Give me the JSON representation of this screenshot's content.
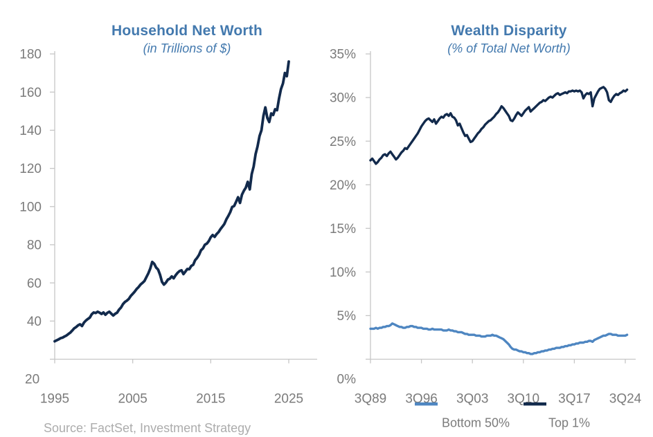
{
  "source_note": "Source: FactSet, Investment Strategy",
  "colors": {
    "title_blue": "#4379AE",
    "navy": "#122A4C",
    "light_blue": "#4E86C1",
    "label_gray": "#7B7B7B",
    "source_gray": "#ACACAC",
    "axis_gray": "#C6C6C6"
  },
  "chart_data": [
    {
      "type": "line",
      "title": "Household Net Worth",
      "subtitle": "(in Trillions of $)",
      "xlabel": "",
      "ylabel": "",
      "grid": false,
      "legend_position": "none",
      "xlim": [
        1995,
        2025
      ],
      "ylim": [
        20,
        180
      ],
      "x_start": 1995.0,
      "x_step": 0.25,
      "x_unit": "year-quarterly",
      "y_ticks": [
        20,
        40,
        60,
        80,
        100,
        120,
        140,
        160,
        180
      ],
      "y_suffix": "",
      "x_ticks": {
        "values": [
          1995,
          2005,
          2015,
          2025
        ],
        "labels": [
          "1995",
          "2005",
          "2015",
          "2025"
        ]
      },
      "series": [
        {
          "name": "Household Net Worth",
          "color_key": "navy",
          "values": [
            29.4,
            29.9,
            30.4,
            31.0,
            31.3,
            31.9,
            32.4,
            33.2,
            33.9,
            35.0,
            36.2,
            36.9,
            37.8,
            38.3,
            37.4,
            39.2,
            40.3,
            41.1,
            41.8,
            43.6,
            44.5,
            44.2,
            44.9,
            44.4,
            43.7,
            44.5,
            43.3,
            44.3,
            44.9,
            43.9,
            42.9,
            43.8,
            44.4,
            46.0,
            47.1,
            48.9,
            50.0,
            50.7,
            51.6,
            53.2,
            54.3,
            55.4,
            56.8,
            57.8,
            59.1,
            60.0,
            61.0,
            63.0,
            65.0,
            67.5,
            71.0,
            70.0,
            68.0,
            67.0,
            64.3,
            60.6,
            59.1,
            60.1,
            61.7,
            62.2,
            63.4,
            62.4,
            64.0,
            65.3,
            66.2,
            66.6,
            64.6,
            65.9,
            67.3,
            67.2,
            68.9,
            69.5,
            71.9,
            73.1,
            74.7,
            77.1,
            78.1,
            80.0,
            80.6,
            81.9,
            83.9,
            85.1,
            84.1,
            85.6,
            86.6,
            88.2,
            89.5,
            90.9,
            93.3,
            95.1,
            97.1,
            99.8,
            100.3,
            102.5,
            104.9,
            101.9,
            106.2,
            108.3,
            109.9,
            113.0,
            109.0,
            117.0,
            121.0,
            127.5,
            131.5,
            137.0,
            140.0,
            147.5,
            152.0,
            146.5,
            144.3,
            148.8,
            148.0,
            151.0,
            150.5,
            156.5,
            161.5,
            164.5,
            170.0,
            168.3,
            176.0
          ]
        }
      ]
    },
    {
      "type": "line",
      "title": "Wealth Disparity",
      "subtitle": "(% of Total Net Worth)",
      "xlabel": "",
      "ylabel": "",
      "grid": false,
      "legend_position": "bottom",
      "xlim": [
        1989.5,
        2024.5
      ],
      "ylim": [
        0,
        35
      ],
      "x_start": 1989.5,
      "x_step": 0.25,
      "x_unit": "year-quarterly",
      "y_ticks": [
        0,
        5,
        10,
        15,
        20,
        25,
        30,
        35
      ],
      "y_suffix": "%",
      "x_ticks": {
        "values": [
          1989.5,
          1996.5,
          2003.5,
          2010.5,
          2017.5,
          2024.5
        ],
        "labels": [
          "3Q89",
          "3Q96",
          "3Q03",
          "3Q10",
          "3Q17",
          "3Q24"
        ]
      },
      "series": [
        {
          "name": "Top 1%",
          "color_key": "navy",
          "values": [
            22.8,
            23.0,
            22.7,
            22.4,
            22.6,
            22.9,
            23.1,
            23.4,
            23.5,
            23.3,
            23.6,
            23.8,
            23.5,
            23.2,
            22.9,
            23.1,
            23.4,
            23.7,
            23.9,
            24.2,
            24.1,
            24.4,
            24.7,
            25.0,
            25.3,
            25.6,
            25.9,
            26.3,
            26.7,
            27.0,
            27.3,
            27.5,
            27.6,
            27.4,
            27.2,
            27.5,
            27.0,
            27.3,
            27.6,
            27.8,
            27.7,
            28.0,
            28.1,
            27.9,
            28.2,
            27.8,
            27.7,
            27.4,
            26.8,
            27.0,
            26.5,
            26.0,
            25.6,
            25.7,
            25.3,
            24.9,
            25.0,
            25.3,
            25.6,
            25.9,
            26.1,
            26.4,
            26.6,
            26.9,
            27.1,
            27.3,
            27.4,
            27.6,
            27.8,
            28.1,
            28.3,
            28.6,
            29.0,
            28.8,
            28.5,
            28.2,
            27.9,
            27.4,
            27.3,
            27.6,
            28.0,
            28.3,
            28.1,
            27.9,
            28.2,
            28.5,
            28.7,
            28.9,
            28.4,
            28.6,
            28.8,
            29.0,
            29.2,
            29.4,
            29.5,
            29.7,
            29.6,
            29.8,
            30.0,
            30.1,
            30.0,
            30.2,
            30.4,
            30.5,
            30.3,
            30.4,
            30.5,
            30.6,
            30.5,
            30.7,
            30.7,
            30.8,
            30.7,
            30.8,
            30.7,
            30.8,
            30.6,
            29.9,
            30.3,
            30.5,
            30.4,
            30.6,
            29.0,
            29.9,
            30.3,
            30.7,
            31.0,
            31.1,
            31.2,
            31.0,
            30.6,
            29.7,
            29.5,
            29.9,
            30.2,
            30.4,
            30.3,
            30.5,
            30.6,
            30.8,
            30.7,
            30.9
          ]
        },
        {
          "name": "Bottom 50%",
          "color_key": "light_blue",
          "values": [
            3.5,
            3.5,
            3.5,
            3.6,
            3.5,
            3.6,
            3.6,
            3.7,
            3.7,
            3.8,
            3.8,
            3.9,
            4.1,
            4.0,
            3.9,
            3.8,
            3.7,
            3.7,
            3.6,
            3.6,
            3.7,
            3.7,
            3.8,
            3.8,
            3.7,
            3.7,
            3.6,
            3.6,
            3.6,
            3.5,
            3.5,
            3.5,
            3.4,
            3.4,
            3.5,
            3.4,
            3.4,
            3.4,
            3.4,
            3.4,
            3.3,
            3.3,
            3.3,
            3.4,
            3.3,
            3.3,
            3.2,
            3.2,
            3.1,
            3.1,
            3.1,
            3.0,
            2.9,
            2.9,
            2.8,
            2.8,
            2.8,
            2.8,
            2.7,
            2.7,
            2.7,
            2.6,
            2.6,
            2.6,
            2.7,
            2.7,
            2.7,
            2.8,
            2.7,
            2.7,
            2.6,
            2.5,
            2.4,
            2.3,
            2.1,
            1.9,
            1.7,
            1.4,
            1.2,
            1.1,
            1.1,
            1.0,
            0.9,
            0.9,
            0.8,
            0.8,
            0.7,
            0.7,
            0.6,
            0.6,
            0.7,
            0.7,
            0.8,
            0.8,
            0.9,
            0.9,
            1.0,
            1.0,
            1.1,
            1.1,
            1.2,
            1.2,
            1.3,
            1.3,
            1.3,
            1.4,
            1.4,
            1.5,
            1.5,
            1.6,
            1.6,
            1.7,
            1.7,
            1.8,
            1.8,
            1.9,
            1.9,
            1.9,
            2.0,
            2.0,
            2.1,
            2.1,
            2.0,
            2.2,
            2.3,
            2.4,
            2.5,
            2.6,
            2.7,
            2.7,
            2.8,
            2.9,
            2.9,
            2.8,
            2.8,
            2.8,
            2.7,
            2.7,
            2.7,
            2.7,
            2.7,
            2.8
          ]
        }
      ],
      "legend": [
        {
          "label": "Bottom 50%",
          "color_key": "light_blue"
        },
        {
          "label": "Top 1%",
          "color_key": "navy"
        }
      ]
    }
  ]
}
